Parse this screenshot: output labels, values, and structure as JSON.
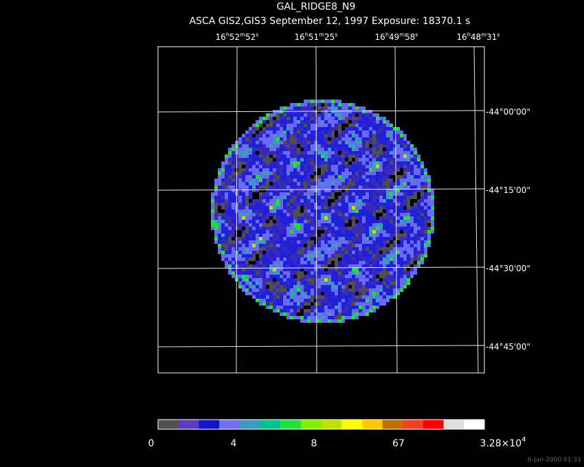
{
  "header": {
    "title": "GAL_RIDGE8_N9",
    "subtitle": "ASCA GIS2,GIS3 September 12, 1997 Exposure: 18370.1 s"
  },
  "ra_labels": [
    {
      "parts": [
        "16",
        "h",
        "52",
        "m",
        "52",
        "s"
      ]
    },
    {
      "parts": [
        "16",
        "h",
        "51",
        "m",
        "25",
        "s"
      ]
    },
    {
      "parts": [
        "16",
        "h",
        "49",
        "m",
        "58",
        "s"
      ]
    },
    {
      "parts": [
        "16",
        "h",
        "48",
        "m",
        "31",
        "s"
      ]
    }
  ],
  "dec_labels": [
    "-44°00'00\"",
    "-44°15'00\"",
    "-44°30'00\"",
    "-44°45'00\""
  ],
  "colorbar": {
    "colors": [
      "#505050",
      "#5a3cc0",
      "#1414d0",
      "#7070f0",
      "#3c9cc0",
      "#00c090",
      "#20e040",
      "#80f000",
      "#c0e000",
      "#ffff00",
      "#ffc800",
      "#c07000",
      "#f04020",
      "#ff0000",
      "#e0e0e0",
      "#ffffff"
    ],
    "labels": [
      "0",
      "4",
      "8",
      "67"
    ],
    "max_label": {
      "mantissa": "3.28×10",
      "exponent": "4"
    }
  },
  "footer": {
    "timestamp": "6-Jan-2000 01:31"
  }
}
